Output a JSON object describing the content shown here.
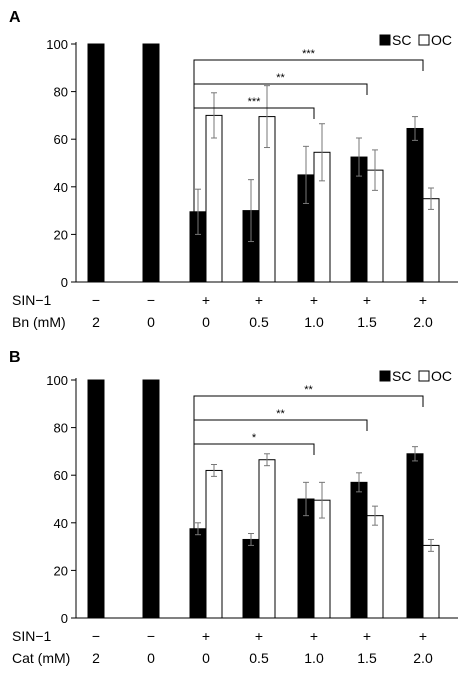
{
  "chart_data": [
    {
      "type": "bar",
      "panel_label": "A",
      "categories": [
        "2",
        "0",
        "0",
        "0.5",
        "1.0",
        "1.5",
        "2.0"
      ],
      "row_labels": [
        "SIN−1",
        "Bn (mM)"
      ],
      "sin1_values": [
        "−",
        "−",
        "+",
        "+",
        "+",
        "+",
        "+"
      ],
      "ylim": [
        0,
        100
      ],
      "yticks": [
        "0",
        "20",
        "40",
        "60",
        "80",
        "100"
      ],
      "legend": {
        "position": "top-right",
        "entries": [
          "SC",
          "OC"
        ]
      },
      "series": [
        {
          "name": "SC",
          "color": "#000000",
          "values": [
            100,
            100,
            29.5,
            30,
            45,
            52.5,
            64.5
          ],
          "errors": [
            0,
            0,
            9.5,
            13,
            12,
            8,
            5
          ]
        },
        {
          "name": "OC",
          "color": "#ffffff",
          "values": [
            null,
            null,
            70,
            69.5,
            54.5,
            47,
            35
          ],
          "errors": [
            null,
            null,
            9.5,
            13,
            12,
            8.5,
            4.5
          ]
        }
      ],
      "significance": [
        {
          "from_category": 2,
          "to_category": 4,
          "label": "***"
        },
        {
          "from_category": 2,
          "to_category": 5,
          "label": "**"
        },
        {
          "from_category": 2,
          "to_category": 6,
          "label": "***"
        }
      ]
    },
    {
      "type": "bar",
      "panel_label": "B",
      "categories": [
        "2",
        "0",
        "0",
        "0.5",
        "1.0",
        "1.5",
        "2.0"
      ],
      "row_labels": [
        "SIN−1",
        "Cat (mM)"
      ],
      "sin1_values": [
        "−",
        "−",
        "+",
        "+",
        "+",
        "+",
        "+"
      ],
      "ylim": [
        0,
        100
      ],
      "yticks": [
        "0",
        "20",
        "40",
        "60",
        "80",
        "100"
      ],
      "legend": {
        "position": "top-right",
        "entries": [
          "SC",
          "OC"
        ]
      },
      "series": [
        {
          "name": "SC",
          "color": "#000000",
          "values": [
            100,
            100,
            37.5,
            33,
            50,
            57,
            69
          ],
          "errors": [
            0,
            0,
            2.5,
            2.5,
            7,
            4,
            3
          ]
        },
        {
          "name": "OC",
          "color": "#ffffff",
          "values": [
            null,
            null,
            62,
            66.5,
            49.5,
            43,
            30.5
          ],
          "errors": [
            null,
            null,
            2.5,
            2.5,
            7.5,
            4,
            2.5
          ]
        }
      ],
      "significance": [
        {
          "from_category": 2,
          "to_category": 4,
          "label": "*"
        },
        {
          "from_category": 2,
          "to_category": 5,
          "label": "**"
        },
        {
          "from_category": 2,
          "to_category": 6,
          "label": "**"
        }
      ]
    }
  ]
}
